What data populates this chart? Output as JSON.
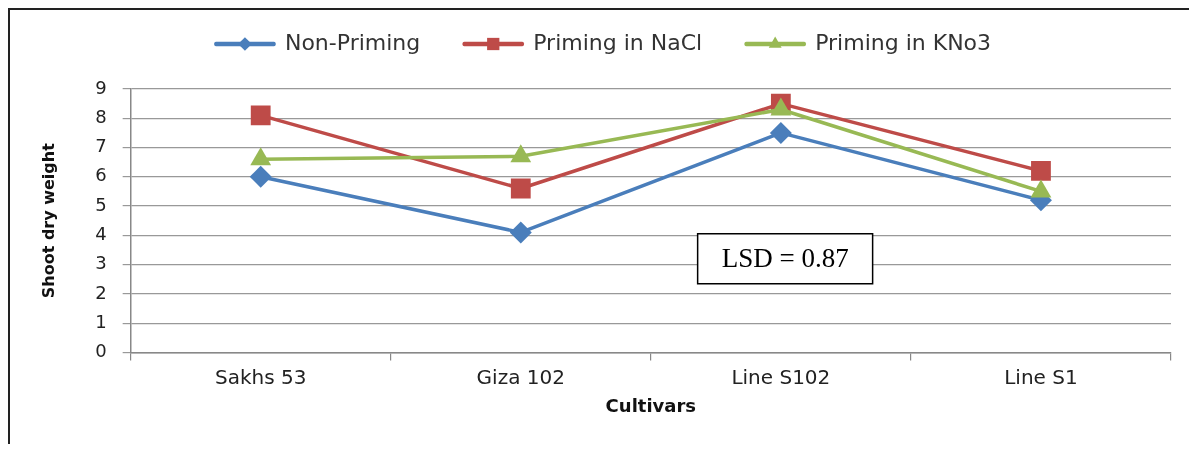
{
  "chart_data": {
    "type": "line",
    "categories": [
      "Sakhs 53",
      "Giza 102",
      "Line S102",
      "Line S1"
    ],
    "series": [
      {
        "name": "Non-Priming",
        "color": "#4a7ebb",
        "marker": "diamond",
        "values": [
          6.0,
          4.1,
          7.5,
          5.2
        ]
      },
      {
        "name": "Priming in NaCl",
        "color": "#be4b48",
        "marker": "square",
        "values": [
          8.1,
          5.6,
          8.5,
          6.2
        ]
      },
      {
        "name": "Priming in KNo3",
        "color": "#98b954",
        "marker": "triangle",
        "values": [
          6.6,
          6.7,
          8.3,
          5.5
        ]
      }
    ],
    "xlabel": "Cultivars",
    "ylabel": "Shoot dry weight",
    "ylim": [
      0,
      9
    ],
    "yticks": [
      0,
      1,
      2,
      3,
      4,
      5,
      6,
      7,
      8,
      9
    ],
    "grid": "y",
    "legend": "top",
    "line_style": "solid",
    "annotations": [
      "LSD = 0.87"
    ]
  }
}
